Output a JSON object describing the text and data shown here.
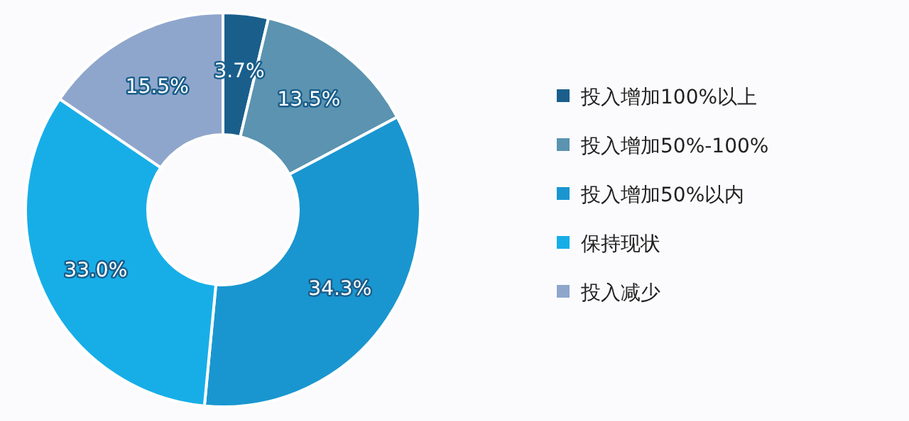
{
  "chart_data": {
    "type": "donut",
    "categories": [
      "投入增加100%以上",
      "投入增加50%-100%",
      "投入增加50%以内",
      "保持现状",
      "投入减少"
    ],
    "values": [
      3.7,
      13.5,
      34.3,
      33.0,
      15.5
    ],
    "value_labels": [
      "3.7%",
      "13.5%",
      "34.3%",
      "33.0%",
      "15.5%"
    ],
    "colors": [
      "#1a5f8c",
      "#5b93b0",
      "#1996d0",
      "#17aee8",
      "#8fa6cc"
    ],
    "legend": "right"
  }
}
